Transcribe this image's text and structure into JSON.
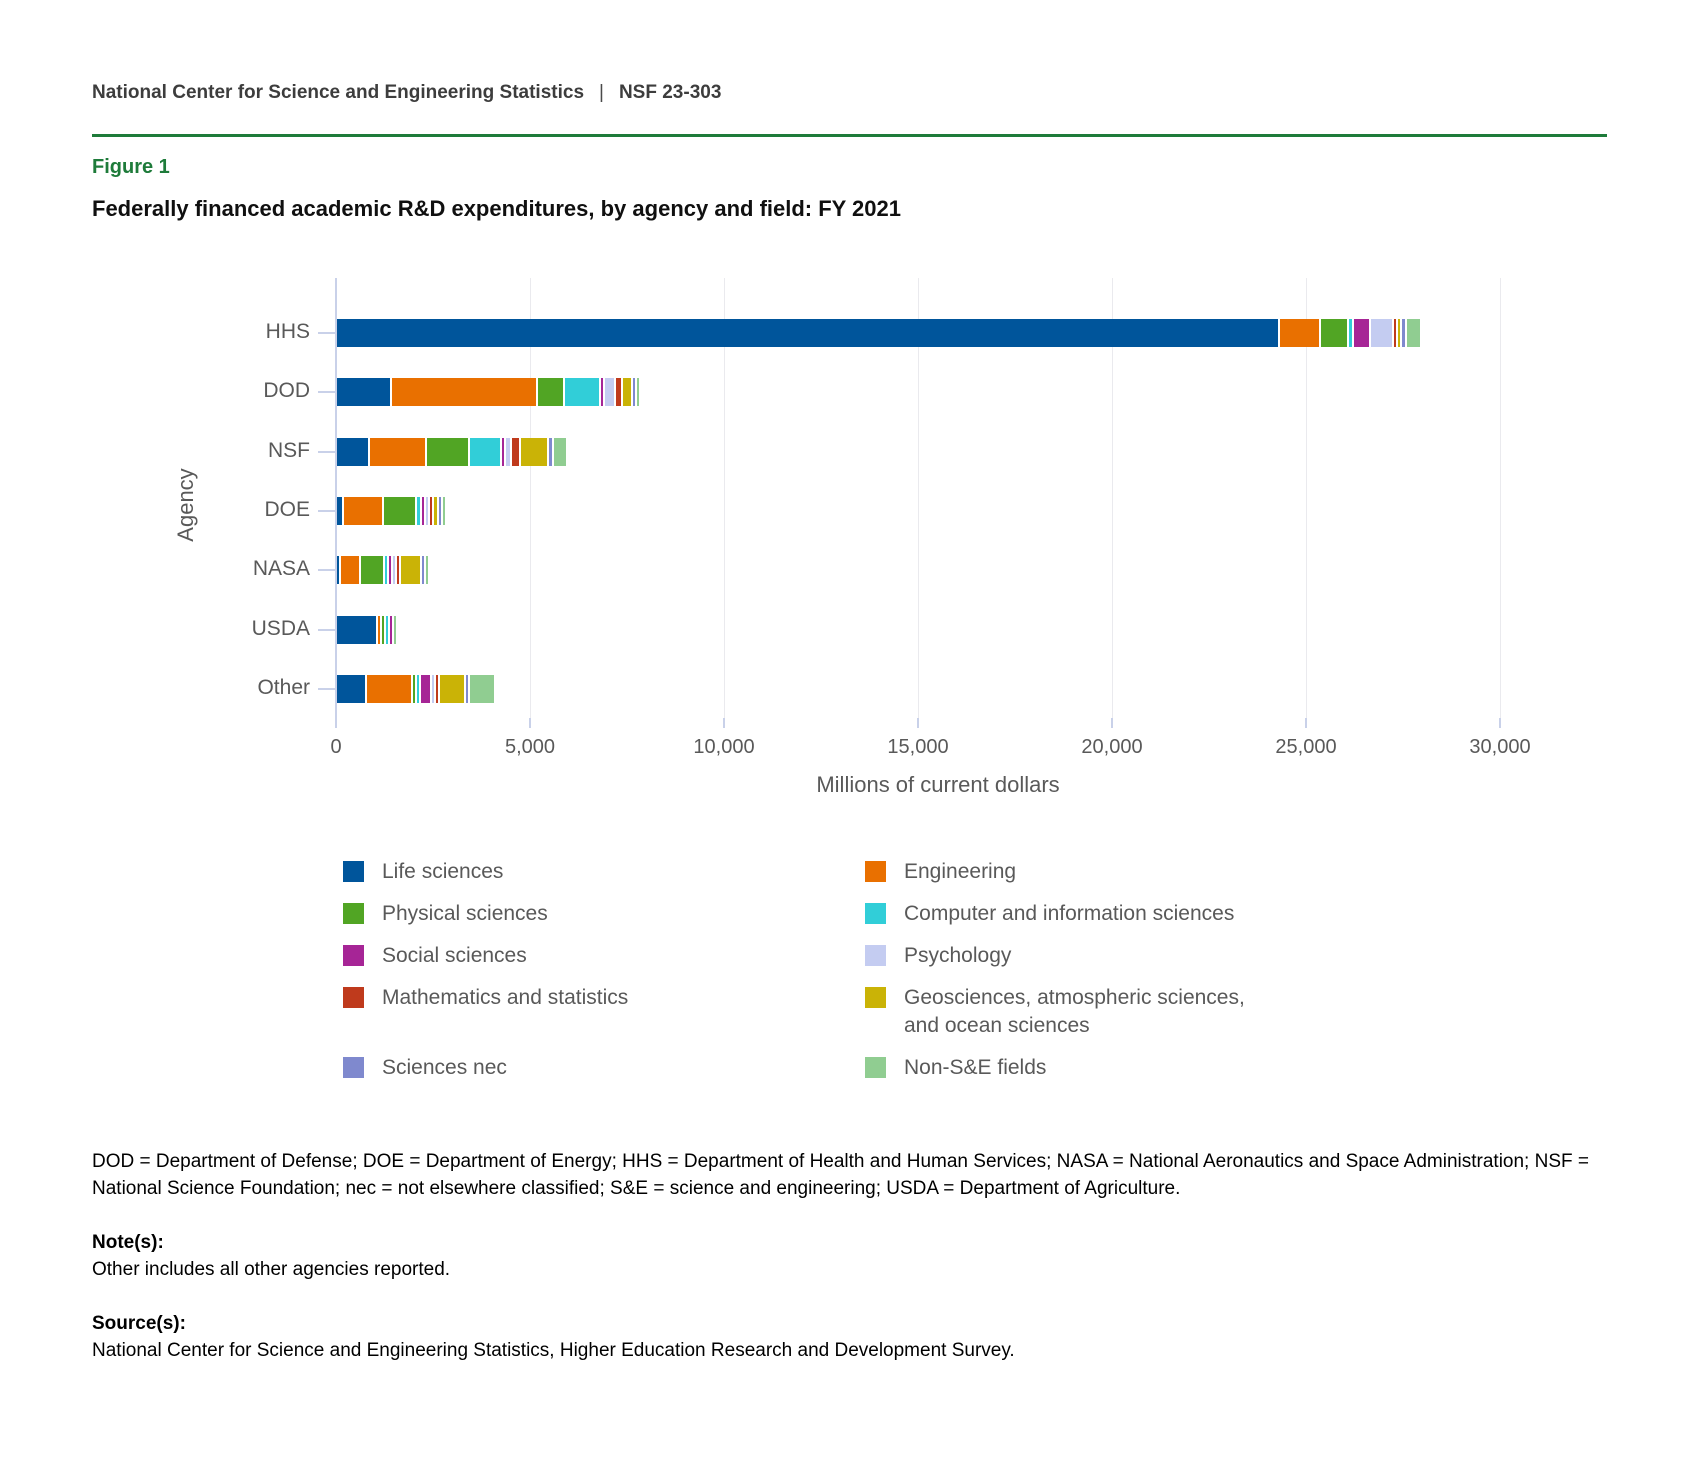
{
  "header": {
    "brand": "National Center for Science and Engineering Statistics",
    "separator": "|",
    "report_number": "NSF 23-303"
  },
  "figure": {
    "label": "Figure 1",
    "title": "Federally financed academic R&D expenditures, by agency and field: FY 2021"
  },
  "colors": {
    "brand_green": "#1e7b3a",
    "axis_line": "#c9d1e9",
    "gridline": "#eaeaee",
    "text_gray": "#595959"
  },
  "chart_data": {
    "type": "bar",
    "orientation": "horizontal",
    "stacked": true,
    "title": "Federally financed academic R&D expenditures, by agency and field: FY 2021",
    "xlabel": "Millions of current dollars",
    "ylabel": "Agency",
    "grid": true,
    "legend_position": "bottom",
    "xlim": [
      0,
      31000
    ],
    "xticks": [
      0,
      5000,
      10000,
      15000,
      20000,
      25000,
      30000
    ],
    "xtick_labels": [
      "0",
      "5,000",
      "10,000",
      "15,000",
      "20,000",
      "25,000",
      "30,000"
    ],
    "categories": [
      "HHS",
      "DOD",
      "NSF",
      "DOE",
      "NASA",
      "USDA",
      "Other"
    ],
    "agency_totals": [
      27400,
      7270,
      5450,
      2124,
      1705,
      1063,
      3531
    ],
    "series": [
      {
        "name": "Life sciences",
        "color": "#00559b",
        "values": [
          24250,
          1370,
          790,
          140,
          55,
          1000,
          730
        ]
      },
      {
        "name": "Engineering",
        "color": "#e97000",
        "values": [
          1000,
          3720,
          1430,
          980,
          470,
          25,
          1120
        ]
      },
      {
        "name": "Physical sciences",
        "color": "#51a524",
        "values": [
          670,
          640,
          1060,
          780,
          555,
          5,
          50
        ]
      },
      {
        "name": "Computer and information sciences",
        "color": "#31ced8",
        "values": [
          75,
          860,
          760,
          85,
          60,
          3,
          70
        ]
      },
      {
        "name": "Social sciences",
        "color": "#a62596",
        "values": [
          395,
          30,
          65,
          8,
          5,
          20,
          230
        ]
      },
      {
        "name": "Psychology",
        "color": "#c4ccf1",
        "values": [
          545,
          250,
          95,
          6,
          5,
          0,
          30
        ]
      },
      {
        "name": "Mathematics and statistics",
        "color": "#bf3a1c",
        "values": [
          40,
          130,
          195,
          30,
          15,
          0,
          20
        ]
      },
      {
        "name": "Geosciences, atmospheric sciences, and ocean sciences",
        "color": "#cab306",
        "values": [
          20,
          190,
          660,
          75,
          480,
          0,
          610
        ]
      },
      {
        "name": "Sciences nec",
        "color": "#7f89ce",
        "values": [
          85,
          50,
          65,
          10,
          10,
          0,
          60
        ]
      },
      {
        "name": "Non-S&E fields",
        "color": "#90cd91",
        "values": [
          320,
          30,
          330,
          10,
          50,
          10,
          611
        ]
      }
    ]
  },
  "legend": {
    "columns": [
      {
        "items": [
          {
            "series": "Life sciences",
            "lines": [
              "Life sciences"
            ]
          },
          {
            "series": "Physical sciences",
            "lines": [
              "Physical sciences"
            ]
          },
          {
            "series": "Social sciences",
            "lines": [
              "Social sciences"
            ]
          },
          {
            "series": "Mathematics and statistics",
            "lines": [
              "Mathematics and statistics"
            ]
          },
          {
            "series": "Sciences nec",
            "lines": [
              "Sciences nec"
            ]
          }
        ]
      },
      {
        "items": [
          {
            "series": "Engineering",
            "lines": [
              "Engineering"
            ]
          },
          {
            "series": "Computer and information sciences",
            "lines": [
              "Computer and information sciences"
            ]
          },
          {
            "series": "Psychology",
            "lines": [
              "Psychology"
            ]
          },
          {
            "series": "Geosciences, atmospheric sciences, and ocean sciences",
            "lines": [
              "Geosciences, atmospheric sciences,",
              "and ocean sciences"
            ]
          },
          {
            "series": "Non-S&E fields",
            "lines": [
              "Non-S&E fields"
            ]
          }
        ]
      }
    ]
  },
  "footnotes": {
    "abbreviations": "DOD = Department of Defense; DOE = Department of Energy; HHS = Department of Health and Human Services; NASA = National Aeronautics and Space Administration; NSF = National Science Foundation; nec = not elsewhere classified; S&E = science and engineering; USDA = Department of Agriculture.",
    "notes_label": "Note(s):",
    "notes": "Other includes all other agencies reported.",
    "source_label": "Source(s):",
    "source": "National Center for Science and Engineering Statistics, Higher Education Research and Development Survey."
  }
}
